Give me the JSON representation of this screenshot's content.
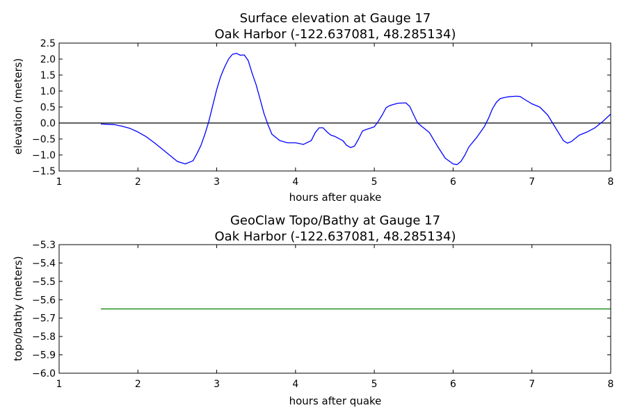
{
  "chart_data": [
    {
      "type": "line",
      "title": "Surface elevation at Gauge 17",
      "subtitle": "Oak Harbor  (-122.637081, 48.285134)",
      "xlabel": "hours after quake",
      "ylabel": "elevation (meters)",
      "xlim": [
        1,
        8
      ],
      "ylim": [
        -1.5,
        2.5
      ],
      "xticks": [
        1,
        2,
        3,
        4,
        5,
        6,
        7,
        8
      ],
      "yticks": [
        -1.5,
        -1.0,
        -0.5,
        0.0,
        0.5,
        1.0,
        1.5,
        2.0,
        2.5
      ],
      "ytick_labels": [
        "−1.5",
        "−1.0",
        "−0.5",
        "0.0",
        "0.5",
        "1.0",
        "1.5",
        "2.0",
        "2.5"
      ],
      "grid": false,
      "reference_line": {
        "y": 0,
        "color": "#000000"
      },
      "series": [
        {
          "color": "#0000ff",
          "x": [
            1.53,
            1.6,
            1.7,
            1.8,
            1.9,
            2.0,
            2.1,
            2.2,
            2.3,
            2.4,
            2.5,
            2.6,
            2.7,
            2.75,
            2.8,
            2.85,
            2.9,
            2.95,
            3.0,
            3.05,
            3.1,
            3.15,
            3.2,
            3.25,
            3.3,
            3.35,
            3.4,
            3.45,
            3.5,
            3.55,
            3.6,
            3.65,
            3.7,
            3.8,
            3.9,
            4.0,
            4.1,
            4.2,
            4.25,
            4.3,
            4.35,
            4.4,
            4.45,
            4.5,
            4.6,
            4.65,
            4.7,
            4.75,
            4.8,
            4.85,
            4.9,
            5.0,
            5.05,
            5.1,
            5.15,
            5.2,
            5.3,
            5.4,
            5.45,
            5.5,
            5.55,
            5.6,
            5.7,
            5.8,
            5.9,
            6.0,
            6.05,
            6.1,
            6.15,
            6.2,
            6.3,
            6.4,
            6.45,
            6.5,
            6.55,
            6.6,
            6.7,
            6.8,
            6.85,
            6.9,
            7.0,
            7.1,
            7.2,
            7.3,
            7.4,
            7.45,
            7.5,
            7.6,
            7.7,
            7.8,
            7.9,
            8.0
          ],
          "y": [
            -0.03,
            -0.04,
            -0.05,
            -0.1,
            -0.17,
            -0.28,
            -0.42,
            -0.6,
            -0.8,
            -1.0,
            -1.2,
            -1.28,
            -1.18,
            -0.95,
            -0.7,
            -0.35,
            0.05,
            0.55,
            1.05,
            1.45,
            1.75,
            2.0,
            2.15,
            2.18,
            2.12,
            2.13,
            1.95,
            1.55,
            1.2,
            0.75,
            0.3,
            -0.05,
            -0.35,
            -0.55,
            -0.62,
            -0.62,
            -0.67,
            -0.55,
            -0.3,
            -0.15,
            -0.15,
            -0.28,
            -0.38,
            -0.42,
            -0.55,
            -0.7,
            -0.77,
            -0.72,
            -0.5,
            -0.25,
            -0.2,
            -0.12,
            0.05,
            0.25,
            0.48,
            0.55,
            0.62,
            0.63,
            0.52,
            0.25,
            0.0,
            -0.1,
            -0.3,
            -0.72,
            -1.1,
            -1.28,
            -1.3,
            -1.2,
            -1.0,
            -0.75,
            -0.45,
            -0.1,
            0.15,
            0.45,
            0.65,
            0.77,
            0.82,
            0.84,
            0.83,
            0.75,
            0.6,
            0.5,
            0.25,
            -0.15,
            -0.55,
            -0.63,
            -0.58,
            -0.38,
            -0.28,
            -0.15,
            0.05,
            0.28
          ]
        }
      ]
    },
    {
      "type": "line",
      "title": "GeoClaw Topo/Bathy at Gauge 17",
      "subtitle": "Oak Harbor  (-122.637081, 48.285134)",
      "xlabel": "hours after quake",
      "ylabel": "topo/bathy (meters)",
      "xlim": [
        1,
        8
      ],
      "ylim": [
        -6.0,
        -5.3
      ],
      "xticks": [
        1,
        2,
        3,
        4,
        5,
        6,
        7,
        8
      ],
      "yticks": [
        -6.0,
        -5.9,
        -5.8,
        -5.7,
        -5.6,
        -5.5,
        -5.4,
        -5.3
      ],
      "ytick_labels": [
        "−6.0",
        "−5.9",
        "−5.8",
        "−5.7",
        "−5.6",
        "−5.5",
        "−5.4",
        "−5.3"
      ],
      "grid": false,
      "series": [
        {
          "color": "#008000",
          "x": [
            1.53,
            8.0
          ],
          "y": [
            -5.65,
            -5.65
          ]
        }
      ]
    }
  ]
}
